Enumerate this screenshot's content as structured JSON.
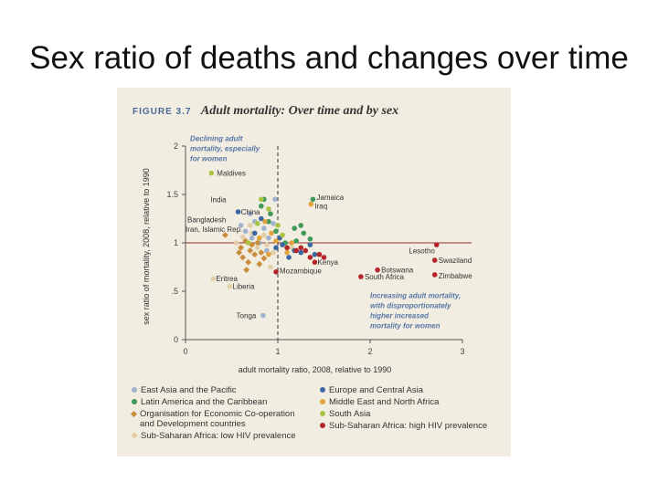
{
  "slide": {
    "title": "Sex ratio of deaths and changes over time"
  },
  "figure": {
    "number": "FIGURE 3.7",
    "title": "Adult mortality: Over time and by sex"
  },
  "colors": {
    "east_asia": "#9fb3cc",
    "latin_america": "#3f9a57",
    "oecd": "#c98c3a",
    "ssa_low": "#e2cfa7",
    "europe": "#3d67a3",
    "mena": "#e3a33c",
    "south_asia": "#a9c442",
    "ssa_high": "#b5262b",
    "refline": "#9b2a2a",
    "annotation": "#5676a8"
  },
  "chart_data": {
    "type": "scatter",
    "xlabel": "adult mortality ratio, 2008, relative to 1990",
    "ylabel": "sex ratio of mortality, 2008, relative to 1990",
    "xlim": [
      0,
      3
    ],
    "ylim": [
      0,
      2
    ],
    "xticks": [
      "0",
      "1",
      "2",
      "3"
    ],
    "yticks": [
      "0",
      ".5",
      "1",
      "1.5",
      "2"
    ],
    "reference_lines": {
      "x": 1,
      "y": 1
    },
    "annotations": [
      {
        "text": "Declining adult\nmortality, especially\nfor women",
        "x": 0.05,
        "y": 2.05
      },
      {
        "text": "Increasing adult mortality,\nwith disproportionately\nhigher increased\nmortality for women",
        "x": 2.0,
        "y": 0.43
      }
    ],
    "series": [
      {
        "name": "East Asia and the Pacific",
        "color_key": "east_asia",
        "shape": "circle",
        "points": [
          [
            0.84,
            0.25
          ],
          [
            0.7,
            1.3
          ],
          [
            0.75,
            1.22
          ],
          [
            0.85,
            1.15
          ],
          [
            0.9,
            1.05
          ],
          [
            0.65,
            1.12
          ],
          [
            0.8,
            1.0
          ],
          [
            0.95,
            1.2
          ],
          [
            0.88,
            0.92
          ],
          [
            0.72,
            1.05
          ],
          [
            0.97,
            1.45
          ],
          [
            0.6,
            1.18
          ]
        ]
      },
      {
        "name": "Latin America and the Caribbean",
        "color_key": "latin_america",
        "shape": "circle",
        "points": [
          [
            1.38,
            1.45
          ],
          [
            1.18,
            1.15
          ],
          [
            1.28,
            1.1
          ],
          [
            1.2,
            1.02
          ],
          [
            0.92,
            1.3
          ],
          [
            0.85,
            1.45
          ],
          [
            0.98,
            1.12
          ],
          [
            1.08,
            1.0
          ],
          [
            1.25,
            1.18
          ],
          [
            0.9,
            1.22
          ],
          [
            0.82,
            1.38
          ],
          [
            1.35,
            1.04
          ]
        ]
      },
      {
        "name": "Organisation for Economic Co-operation and Development countries",
        "color_key": "oecd",
        "shape": "diamond",
        "points": [
          [
            0.43,
            1.08
          ],
          [
            0.6,
            0.95
          ],
          [
            0.65,
            1.02
          ],
          [
            0.7,
            0.92
          ],
          [
            0.75,
            0.88
          ],
          [
            0.68,
            0.8
          ],
          [
            0.78,
            1.0
          ],
          [
            0.62,
            0.85
          ],
          [
            0.82,
            0.9
          ],
          [
            0.72,
            0.98
          ],
          [
            0.58,
            0.9
          ],
          [
            0.8,
            0.78
          ],
          [
            0.66,
            0.72
          ],
          [
            0.85,
            0.84
          ]
        ]
      },
      {
        "name": "Sub-Saharan Africa: low HIV prevalence",
        "color_key": "ssa_low",
        "shape": "circle",
        "points": [
          [
            0.3,
            0.63
          ],
          [
            0.48,
            0.55
          ],
          [
            0.72,
            1.1
          ],
          [
            0.88,
            0.98
          ],
          [
            0.95,
            0.9
          ],
          [
            0.62,
            1.06
          ],
          [
            0.78,
            0.95
          ],
          [
            0.85,
            1.08
          ],
          [
            0.7,
            1.18
          ],
          [
            0.92,
            0.75
          ],
          [
            1.15,
            0.95
          ],
          [
            0.55,
            1.0
          ]
        ]
      },
      {
        "name": "Europe and Central Asia",
        "color_key": "europe",
        "shape": "circle",
        "points": [
          [
            0.57,
            1.32
          ],
          [
            0.82,
            1.25
          ],
          [
            1.05,
            0.98
          ],
          [
            1.12,
            0.85
          ],
          [
            1.25,
            0.9
          ],
          [
            0.98,
            0.95
          ],
          [
            1.18,
            0.92
          ],
          [
            1.35,
            0.98
          ],
          [
            1.02,
            1.05
          ],
          [
            0.75,
            1.1
          ],
          [
            1.4,
            0.88
          ]
        ]
      },
      {
        "name": "Middle East and North Africa",
        "color_key": "mena",
        "shape": "circle",
        "points": [
          [
            1.36,
            1.4
          ],
          [
            0.86,
            1.22
          ],
          [
            0.93,
            1.1
          ],
          [
            1.1,
            0.9
          ],
          [
            0.98,
            1.02
          ],
          [
            0.8,
            1.05
          ],
          [
            1.15,
            1.0
          ],
          [
            0.9,
            0.88
          ]
        ]
      },
      {
        "name": "South Asia",
        "color_key": "south_asia",
        "shape": "circle",
        "points": [
          [
            0.28,
            1.72
          ],
          [
            0.82,
            1.45
          ],
          [
            0.68,
            1.0
          ],
          [
            1.0,
            1.18
          ],
          [
            0.9,
            1.35
          ],
          [
            1.05,
            1.08
          ],
          [
            0.78,
            1.2
          ],
          [
            1.1,
            0.95
          ]
        ]
      },
      {
        "name": "Sub-Saharan Africa: high HIV prevalence",
        "color_key": "ssa_high",
        "shape": "circle",
        "points": [
          [
            2.72,
            0.98
          ],
          [
            2.7,
            0.82
          ],
          [
            2.7,
            0.67
          ],
          [
            2.08,
            0.72
          ],
          [
            1.9,
            0.65
          ],
          [
            1.35,
            0.85
          ],
          [
            1.4,
            0.8
          ],
          [
            0.98,
            0.7
          ],
          [
            1.2,
            0.92
          ],
          [
            1.25,
            0.95
          ],
          [
            1.3,
            0.92
          ],
          [
            1.45,
            0.88
          ],
          [
            1.5,
            0.85
          ],
          [
            1.1,
            0.95
          ]
        ]
      }
    ],
    "point_labels": [
      {
        "text": "Maldives",
        "x": 0.3,
        "y": 1.72,
        "anchor": "start",
        "dx": 4,
        "dy": 3
      },
      {
        "text": "India",
        "x": 0.27,
        "y": 1.45,
        "anchor": "start",
        "dx": 0,
        "dy": 3
      },
      {
        "text": "China",
        "x": 0.6,
        "y": 1.32,
        "anchor": "start",
        "dx": 0,
        "dy": 3
      },
      {
        "text": "Bangladesh",
        "x": 0.02,
        "y": 1.24,
        "anchor": "start",
        "dx": 0,
        "dy": 3
      },
      {
        "text": "Iran, Islamic Rep.",
        "x": 0.0,
        "y": 1.14,
        "anchor": "start",
        "dx": 0,
        "dy": 3
      },
      {
        "text": "Jamaica",
        "x": 1.42,
        "y": 1.47,
        "anchor": "start",
        "dx": 0,
        "dy": 3
      },
      {
        "text": "Iraq",
        "x": 1.4,
        "y": 1.38,
        "anchor": "start",
        "dx": 0,
        "dy": 3
      },
      {
        "text": "Lesotho",
        "x": 2.42,
        "y": 0.92,
        "anchor": "start",
        "dx": 0,
        "dy": 3
      },
      {
        "text": "Swaziland",
        "x": 2.74,
        "y": 0.82,
        "anchor": "start",
        "dx": 0,
        "dy": 3
      },
      {
        "text": "Zimbabwe",
        "x": 2.74,
        "y": 0.66,
        "anchor": "start",
        "dx": 0,
        "dy": 3
      },
      {
        "text": "Botswana",
        "x": 2.12,
        "y": 0.72,
        "anchor": "start",
        "dx": 0,
        "dy": 3
      },
      {
        "text": "South Africa",
        "x": 1.94,
        "y": 0.65,
        "anchor": "start",
        "dx": 0,
        "dy": 3
      },
      {
        "text": "Kenya",
        "x": 1.43,
        "y": 0.8,
        "anchor": "start",
        "dx": 0,
        "dy": 3
      },
      {
        "text": "Mozambique",
        "x": 1.02,
        "y": 0.71,
        "anchor": "start",
        "dx": 0,
        "dy": 3
      },
      {
        "text": "Eritrea",
        "x": 0.33,
        "y": 0.63,
        "anchor": "start",
        "dx": 0,
        "dy": 3
      },
      {
        "text": "Liberia",
        "x": 0.51,
        "y": 0.55,
        "anchor": "start",
        "dx": 0,
        "dy": 3
      },
      {
        "text": "Tonga",
        "x": 0.55,
        "y": 0.25,
        "anchor": "start",
        "dx": 0,
        "dy": 3
      }
    ]
  },
  "legend": {
    "items": [
      {
        "label": "East Asia and the Pacific",
        "color_key": "east_asia",
        "shape": "circle"
      },
      {
        "label": "Latin America and the Caribbean",
        "color_key": "latin_america",
        "shape": "circle"
      },
      {
        "label": "Organisation for Economic Co-operation\nand Development countries",
        "color_key": "oecd",
        "shape": "diamond"
      },
      {
        "label": "Sub-Saharan Africa: low HIV prevalence",
        "color_key": "ssa_low",
        "shape": "circle"
      },
      {
        "label": "Europe and Central Asia",
        "color_key": "europe",
        "shape": "circle"
      },
      {
        "label": "Middle East and North Africa",
        "color_key": "mena",
        "shape": "circle"
      },
      {
        "label": "South Asia",
        "color_key": "south_asia",
        "shape": "circle"
      },
      {
        "label": "Sub-Saharan Africa: high HIV prevalence",
        "color_key": "ssa_high",
        "shape": "circle"
      }
    ]
  }
}
